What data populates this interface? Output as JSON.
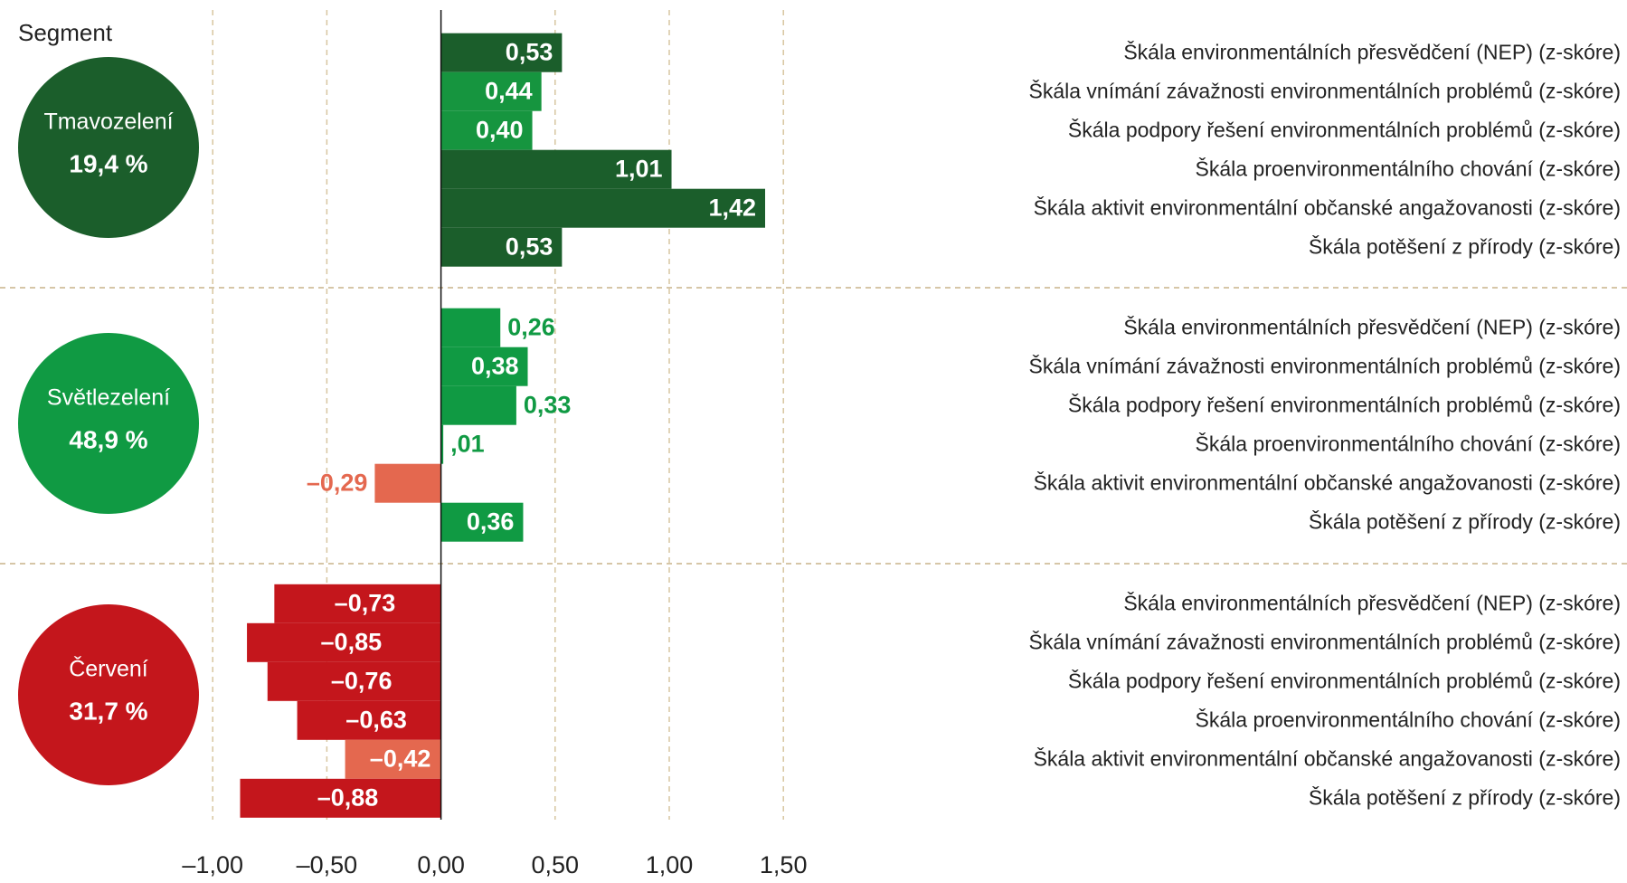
{
  "chart_data": {
    "type": "bar",
    "orientation": "horizontal",
    "legend_title": "Segment",
    "categories": [
      "Škála environmentálních přesvědčení (NEP) (z-skóre)",
      "Škála vnímání závažnosti environmentálních problémů (z-skóre)",
      "Škála podpory řešení environmentálních problémů (z-skóre)",
      "Škála proenvironmentálního chování (z-skóre)",
      "Škála aktivit environmentální občanské angažovanosti (z-skóre)",
      "Škála potěšení z přírody (z-skóre)"
    ],
    "series": [
      {
        "name": "Tmavozelení",
        "share": "19,4 %",
        "color": "#1b5e2b",
        "values": [
          0.53,
          0.44,
          0.4,
          1.01,
          1.42,
          0.53
        ],
        "value_labels": [
          "0,53",
          "0,44",
          "0,40",
          "1,01",
          "1,42",
          "0,53"
        ],
        "bar_colors": [
          "#1b5e2b",
          "#16953f",
          "#16953f",
          "#1b5e2b",
          "#1b5e2b",
          "#1b5e2b"
        ]
      },
      {
        "name": "Světlezelení",
        "share": "48,9 %",
        "color": "#109a43",
        "values": [
          0.26,
          0.38,
          0.33,
          0.01,
          -0.29,
          0.36
        ],
        "value_labels": [
          "0,26",
          "0,38",
          "0,33",
          ",01",
          "–0,29",
          "0,36"
        ],
        "bar_colors": [
          "#109a43",
          "#109a43",
          "#109a43",
          "#109a43",
          "#e4684f",
          "#109a43"
        ]
      },
      {
        "name": "Červení",
        "share": "31,7 %",
        "color": "#c4161c",
        "values": [
          -0.73,
          -0.85,
          -0.76,
          -0.63,
          -0.42,
          -0.88
        ],
        "value_labels": [
          "–0,73",
          "–0,85",
          "–0,76",
          "–0,63",
          "–0,42",
          "–0,88"
        ],
        "bar_colors": [
          "#c4161c",
          "#c4161c",
          "#c4161c",
          "#c4161c",
          "#e4684f",
          "#c4161c"
        ]
      }
    ],
    "xlim": [
      -1.0,
      1.5
    ],
    "xticks": [
      {
        "value": -1.0,
        "label": "–1,00"
      },
      {
        "value": -0.5,
        "label": "–0,50"
      },
      {
        "value": 0.0,
        "label": "0,00"
      },
      {
        "value": 0.5,
        "label": "0,50"
      },
      {
        "value": 1.0,
        "label": "1,00"
      },
      {
        "value": 1.5,
        "label": "1,50"
      }
    ],
    "grid": true
  }
}
